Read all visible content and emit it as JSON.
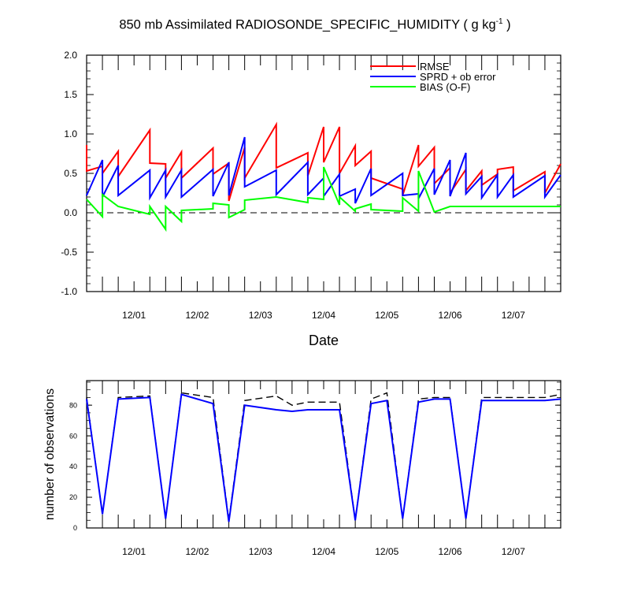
{
  "title_main": "850 mb Assimilated RADIOSONDE_SPECIFIC_HUMIDITY ( g kg",
  "title_sup": "-1",
  "title_close": " )",
  "chart_data": [
    {
      "type": "line",
      "name": "top-panel",
      "xlabel": "Date",
      "ylabel": "",
      "xlim": [
        0.0,
        7.5
      ],
      "ylim": [
        -1.0,
        2.0
      ],
      "yticks": [
        -1.0,
        -0.5,
        0.0,
        0.5,
        1.0,
        1.5,
        2.0
      ],
      "ytick_labels": [
        "-1.0",
        "-0.5",
        "0.0",
        "0.5",
        "1.0",
        "1.5",
        "2.0"
      ],
      "xticks": [
        0.75,
        1.75,
        2.75,
        3.75,
        4.75,
        5.75,
        6.75
      ],
      "xtick_labels": [
        "12/01",
        "12/02",
        "12/03",
        "12/04",
        "12/05",
        "12/06",
        "12/07"
      ],
      "zero_line": 0.0,
      "legend_position": "top-right",
      "series": [
        {
          "name": "RMSE",
          "color": "#ff0000",
          "x": [
            0.0,
            0.0,
            0.25,
            0.25,
            0.5,
            0.5,
            1.0,
            1.0,
            1.25,
            1.25,
            1.5,
            1.5,
            2.0,
            2.0,
            2.25,
            2.25,
            2.5,
            2.5,
            3.0,
            3.0,
            3.5,
            3.5,
            3.75,
            3.75,
            4.0,
            4.0,
            4.25,
            4.25,
            4.5,
            4.5,
            5.0,
            5.0,
            5.25,
            5.25,
            5.5,
            5.5,
            5.75,
            5.75,
            6.0,
            6.0,
            6.25,
            6.25,
            6.5,
            6.5,
            6.75,
            6.75,
            7.25,
            7.25,
            7.5
          ],
          "y": [
            0.86,
            0.53,
            0.59,
            0.5,
            0.78,
            0.46,
            1.05,
            0.63,
            0.62,
            0.44,
            0.77,
            0.44,
            0.82,
            0.49,
            0.63,
            0.15,
            0.83,
            0.44,
            1.12,
            0.57,
            0.76,
            0.47,
            1.09,
            0.64,
            1.09,
            0.5,
            0.85,
            0.6,
            0.78,
            0.44,
            0.3,
            0.22,
            0.86,
            0.59,
            0.83,
            0.37,
            0.57,
            0.25,
            0.55,
            0.28,
            0.53,
            0.35,
            0.49,
            0.55,
            0.58,
            0.28,
            0.52,
            0.25,
            0.62
          ]
        },
        {
          "name": "SPRD + ob error",
          "color": "#0000ff",
          "x": [
            0.0,
            0.0,
            0.25,
            0.25,
            0.5,
            0.5,
            1.0,
            1.0,
            1.25,
            1.25,
            1.5,
            1.5,
            2.0,
            2.0,
            2.25,
            2.25,
            2.5,
            2.5,
            3.0,
            3.0,
            3.5,
            3.5,
            3.75,
            3.75,
            4.0,
            4.0,
            4.25,
            4.25,
            4.5,
            4.5,
            5.0,
            5.0,
            5.25,
            5.25,
            5.5,
            5.5,
            5.75,
            5.75,
            6.0,
            6.0,
            6.25,
            6.25,
            6.5,
            6.5,
            6.75,
            6.75,
            7.25,
            7.25,
            7.5
          ],
          "y": [
            0.23,
            0.22,
            0.67,
            0.2,
            0.6,
            0.22,
            0.54,
            0.19,
            0.54,
            0.2,
            0.54,
            0.2,
            0.55,
            0.21,
            0.64,
            0.22,
            0.96,
            0.33,
            0.54,
            0.23,
            0.64,
            0.23,
            0.44,
            0.21,
            0.49,
            0.21,
            0.3,
            0.12,
            0.56,
            0.22,
            0.5,
            0.22,
            0.24,
            0.18,
            0.56,
            0.23,
            0.67,
            0.21,
            0.76,
            0.24,
            0.46,
            0.19,
            0.48,
            0.2,
            0.48,
            0.2,
            0.47,
            0.2,
            0.48
          ]
        },
        {
          "name": "BIAS (O-F)",
          "color": "#00ff00",
          "x": [
            0.0,
            0.0,
            0.25,
            0.25,
            0.5,
            0.5,
            1.0,
            1.0,
            1.25,
            1.25,
            1.5,
            1.5,
            2.0,
            2.0,
            2.25,
            2.25,
            2.5,
            2.5,
            3.0,
            3.0,
            3.5,
            3.5,
            3.75,
            3.75,
            4.0,
            4.0,
            4.25,
            4.25,
            4.5,
            4.5,
            5.0,
            5.0,
            5.25,
            5.25,
            5.5,
            5.5,
            5.75,
            5.75,
            6.0,
            6.0,
            6.25,
            6.25,
            6.5,
            6.5,
            6.75,
            6.75,
            7.25,
            7.25,
            7.5
          ],
          "y": [
            0.17,
            0.17,
            -0.05,
            0.23,
            0.08,
            0.08,
            -0.02,
            0.08,
            -0.21,
            0.08,
            -0.11,
            0.03,
            0.05,
            0.12,
            0.1,
            -0.06,
            0.04,
            0.16,
            0.2,
            0.2,
            0.13,
            0.19,
            0.17,
            0.58,
            0.1,
            0.2,
            0.02,
            0.05,
            0.11,
            0.04,
            0.02,
            0.19,
            0.02,
            0.53,
            0.01,
            0.01,
            0.08,
            0.08,
            0.08,
            0.08,
            0.08,
            0.08,
            0.08,
            0.08,
            0.08,
            0.08,
            0.08,
            0.08,
            0.08
          ]
        }
      ]
    },
    {
      "type": "line",
      "name": "bottom-panel",
      "xlabel": "",
      "ylabel": "number of observations",
      "xlim": [
        0.0,
        7.5
      ],
      "ylim": [
        0,
        96
      ],
      "yticks": [
        0,
        20,
        40,
        60,
        80
      ],
      "ytick_labels": [
        "0",
        "20",
        "40",
        "60",
        "80"
      ],
      "xticks": [
        0.75,
        1.75,
        2.75,
        3.75,
        4.75,
        5.75,
        6.75
      ],
      "xtick_labels": [
        "12/01",
        "12/02",
        "12/03",
        "12/04",
        "12/05",
        "12/06",
        "12/07"
      ],
      "series": [
        {
          "color": "#000000",
          "dash": true,
          "x": [
            0.0,
            0.25,
            0.5,
            1.0,
            1.25,
            1.5,
            2.0,
            2.25,
            2.5,
            3.0,
            3.25,
            3.5,
            3.75,
            4.0,
            4.25,
            4.5,
            4.75,
            5.0,
            5.25,
            5.5,
            5.75,
            6.0,
            6.25,
            6.5,
            6.75,
            7.0,
            7.25,
            7.5
          ],
          "y": [
            85,
            9,
            85,
            86,
            6,
            88,
            85,
            5,
            83,
            86,
            80,
            82,
            82,
            82,
            5,
            84,
            88,
            6,
            84,
            85,
            85,
            6,
            85,
            85,
            85,
            85,
            85,
            87
          ]
        },
        {
          "color": "#0000ff",
          "dash": false,
          "x": [
            0.0,
            0.25,
            0.5,
            1.0,
            1.25,
            1.5,
            2.0,
            2.25,
            2.5,
            3.0,
            3.25,
            3.5,
            3.75,
            4.0,
            4.25,
            4.5,
            4.75,
            5.0,
            5.25,
            5.5,
            5.75,
            6.0,
            6.25,
            6.5,
            6.75,
            7.0,
            7.25,
            7.5
          ],
          "y": [
            84,
            9,
            84,
            85,
            6,
            87,
            81,
            4,
            80,
            77,
            76,
            77,
            77,
            77,
            5,
            81,
            83,
            6,
            82,
            84,
            84,
            6,
            83,
            83,
            83,
            83,
            83,
            84
          ]
        }
      ]
    }
  ]
}
